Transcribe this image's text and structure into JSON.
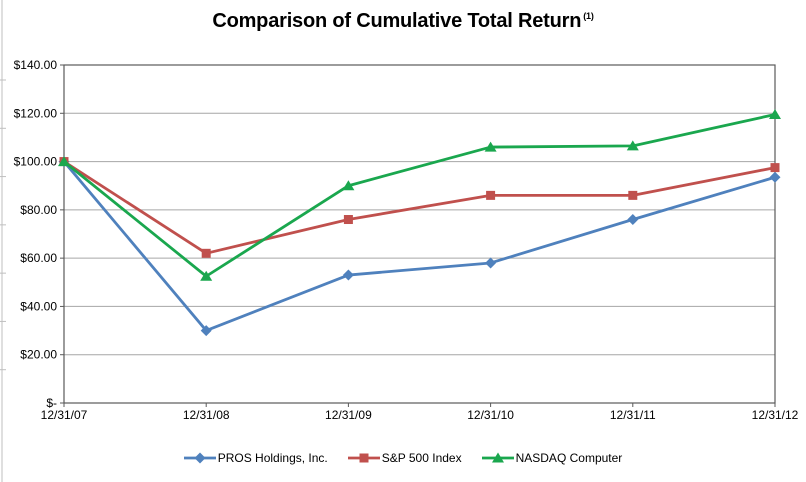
{
  "title": {
    "text": "Comparison of Cumulative Total Return",
    "superscript": "(1)"
  },
  "chart_data": {
    "type": "line",
    "title": "Comparison of Cumulative Total Return (1)",
    "categories": [
      "12/31/07",
      "12/31/08",
      "12/31/09",
      "12/31/10",
      "12/31/11",
      "12/31/12"
    ],
    "series": [
      {
        "name": "PROS Holdings, Inc.",
        "color": "#4F81BD",
        "marker": "diamond",
        "values": [
          100,
          30,
          53,
          58,
          76,
          93.5
        ]
      },
      {
        "name": "S&P 500 Index",
        "color": "#C0504D",
        "marker": "square",
        "values": [
          100,
          62,
          76,
          86,
          86,
          97.5
        ]
      },
      {
        "name": "NASDAQ Computer",
        "color": "#1AA74E",
        "marker": "triangle",
        "values": [
          100,
          52.5,
          90,
          106,
          106.5,
          119.5
        ]
      }
    ],
    "xlabel": "",
    "ylabel": "",
    "ylim": [
      0,
      140
    ],
    "ytick_step": 20,
    "ytick_labels": [
      "$-",
      "$20.00",
      "$40.00",
      "$60.00",
      "$80.00",
      "$100.00",
      "$120.00",
      "$140.00"
    ],
    "grid": true,
    "legend_position": "bottom",
    "gridline_color": "#A6A6A6",
    "axis_color": "#595959",
    "edge_rule_color": "#BFBFBF",
    "label_color": "#000000"
  }
}
